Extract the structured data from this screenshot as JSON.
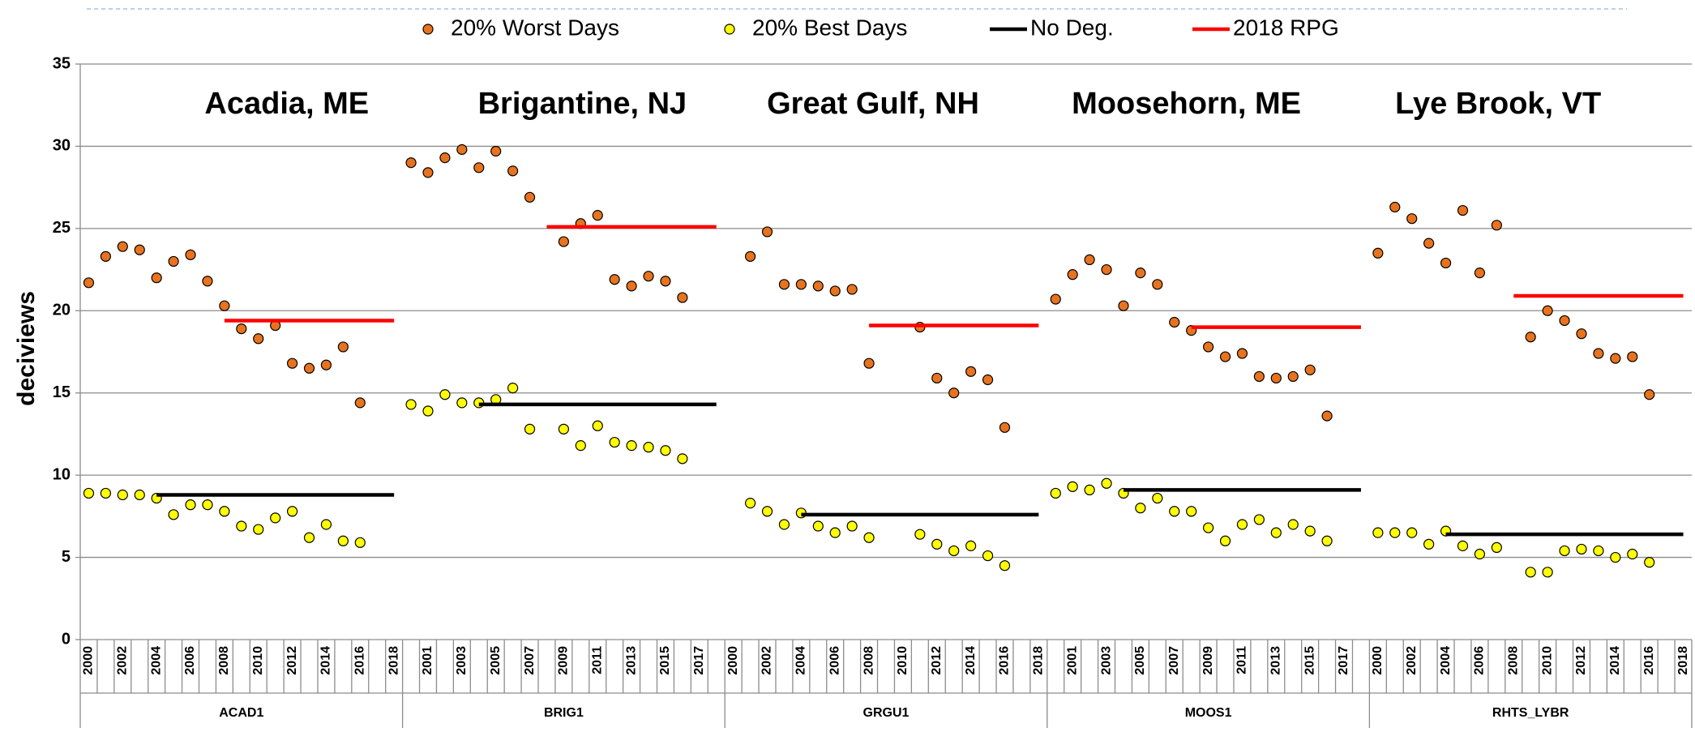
{
  "chart_data": {
    "type": "scatter",
    "y_label": "deciviews",
    "ylim": [
      0,
      35
    ],
    "yticks": [
      0,
      5,
      10,
      15,
      20,
      25,
      30,
      35
    ],
    "grid": true,
    "legend": "top",
    "groups": [
      "ACAD1",
      "BRIG1",
      "GRGU1",
      "MOOS1",
      "RHTS_LYBR"
    ],
    "annotations": [
      "Acadia, ME",
      "Brigantine, NJ",
      "Great Gulf, NH",
      "Moosehorn, ME",
      "Lye Brook, VT"
    ],
    "categories": [
      "2000",
      null,
      "2002",
      null,
      "2004",
      null,
      "2006",
      null,
      "2008",
      null,
      "2010",
      null,
      "2012",
      null,
      "2014",
      null,
      "2016",
      null,
      "2018",
      null,
      "2001",
      null,
      "2003",
      null,
      "2005",
      null,
      "2007",
      null,
      "2009",
      null,
      "2011",
      null,
      "2013",
      null,
      "2015",
      null,
      "2017",
      null,
      "2000",
      null,
      "2002",
      null,
      "2004",
      null,
      "2006",
      null,
      "2008",
      null,
      "2010",
      null,
      "2012",
      null,
      "2014",
      null,
      "2016",
      null,
      "2018",
      null,
      "2001",
      null,
      "2003",
      null,
      "2005",
      null,
      "2007",
      null,
      "2009",
      null,
      "2011",
      null,
      "2013",
      null,
      "2015",
      null,
      "2017",
      null,
      "2000",
      null,
      "2002",
      null,
      "2004",
      null,
      "2006",
      null,
      "2008",
      null,
      "2010",
      null,
      "2012",
      null,
      "2014",
      null,
      "2016",
      null,
      "2018"
    ],
    "series": [
      {
        "name": "20% Worst Days",
        "type": "scatter",
        "color": "#e8731e",
        "values": [
          21.7,
          23.3,
          23.9,
          23.7,
          22.0,
          23.0,
          23.4,
          21.8,
          20.3,
          18.9,
          18.3,
          19.1,
          16.8,
          16.5,
          16.7,
          17.8,
          14.4,
          null,
          null,
          29.0,
          28.4,
          29.3,
          29.8,
          28.7,
          29.7,
          28.5,
          26.9,
          null,
          24.2,
          25.3,
          25.8,
          21.9,
          21.5,
          22.1,
          21.8,
          20.8,
          null,
          null,
          null,
          23.3,
          24.8,
          21.6,
          21.6,
          21.5,
          21.2,
          21.3,
          16.8,
          null,
          null,
          19.0,
          15.9,
          15.0,
          16.3,
          15.8,
          12.9,
          null,
          null,
          20.7,
          22.2,
          23.1,
          22.5,
          20.3,
          22.3,
          21.6,
          19.3,
          18.8,
          17.8,
          17.2,
          17.4,
          16.0,
          15.9,
          16.0,
          16.4,
          13.6,
          null,
          null,
          23.5,
          26.3,
          25.6,
          24.1,
          22.9,
          26.1,
          22.3,
          25.2,
          null,
          18.4,
          20.0,
          19.4,
          18.6,
          17.4,
          17.1,
          17.2,
          14.9,
          null,
          null
        ]
      },
      {
        "name": "20% Best Days",
        "type": "scatter",
        "color": "#ffff00",
        "values": [
          8.9,
          8.9,
          8.8,
          8.8,
          8.6,
          7.6,
          8.2,
          8.2,
          7.8,
          6.9,
          6.7,
          7.4,
          7.8,
          6.2,
          7.0,
          6.0,
          5.9,
          null,
          null,
          14.3,
          13.9,
          14.9,
          14.4,
          14.4,
          14.6,
          15.3,
          12.8,
          null,
          12.8,
          11.8,
          13.0,
          12.0,
          11.8,
          11.7,
          11.5,
          11.0,
          null,
          null,
          null,
          8.3,
          7.8,
          7.0,
          7.7,
          6.9,
          6.5,
          6.9,
          6.2,
          null,
          null,
          6.4,
          5.8,
          5.4,
          5.7,
          5.1,
          4.5,
          null,
          null,
          8.9,
          9.3,
          9.1,
          9.5,
          8.9,
          8.0,
          8.6,
          7.8,
          7.8,
          6.8,
          6.0,
          7.0,
          7.3,
          6.5,
          7.0,
          6.6,
          6.0,
          null,
          null,
          6.5,
          6.5,
          6.5,
          5.8,
          6.6,
          5.7,
          5.2,
          5.6,
          null,
          4.1,
          4.1,
          5.4,
          5.5,
          5.4,
          5.0,
          5.2,
          4.7,
          null,
          null
        ]
      },
      {
        "name": "No Deg.",
        "type": "line",
        "color": "#000000",
        "values": [
          null,
          null,
          null,
          null,
          8.8,
          8.8,
          8.8,
          8.8,
          8.8,
          8.8,
          8.8,
          8.8,
          8.8,
          8.8,
          8.8,
          8.8,
          8.8,
          8.8,
          8.8,
          null,
          null,
          null,
          null,
          14.3,
          14.3,
          14.3,
          14.3,
          14.3,
          14.3,
          14.3,
          14.3,
          14.3,
          14.3,
          14.3,
          14.3,
          14.3,
          14.3,
          14.3,
          null,
          null,
          null,
          null,
          7.6,
          7.6,
          7.6,
          7.6,
          7.6,
          7.6,
          7.6,
          7.6,
          7.6,
          7.6,
          7.6,
          7.6,
          7.6,
          7.6,
          7.6,
          null,
          null,
          null,
          null,
          9.1,
          9.1,
          9.1,
          9.1,
          9.1,
          9.1,
          9.1,
          9.1,
          9.1,
          9.1,
          9.1,
          9.1,
          9.1,
          9.1,
          9.1,
          null,
          null,
          null,
          null,
          6.4,
          6.4,
          6.4,
          6.4,
          6.4,
          6.4,
          6.4,
          6.4,
          6.4,
          6.4,
          6.4,
          6.4,
          6.4,
          6.4,
          6.4
        ]
      },
      {
        "name": "2018 RPG",
        "type": "line",
        "color": "#ff0000",
        "values": [
          null,
          null,
          null,
          null,
          null,
          null,
          null,
          null,
          19.4,
          19.4,
          19.4,
          19.4,
          19.4,
          19.4,
          19.4,
          19.4,
          19.4,
          19.4,
          19.4,
          null,
          null,
          null,
          null,
          null,
          null,
          null,
          null,
          25.1,
          25.1,
          25.1,
          25.1,
          25.1,
          25.1,
          25.1,
          25.1,
          25.1,
          25.1,
          25.1,
          null,
          null,
          null,
          null,
          null,
          null,
          null,
          null,
          19.1,
          19.1,
          19.1,
          19.1,
          19.1,
          19.1,
          19.1,
          19.1,
          19.1,
          19.1,
          19.1,
          null,
          null,
          null,
          null,
          null,
          null,
          null,
          null,
          19.0,
          19.0,
          19.0,
          19.0,
          19.0,
          19.0,
          19.0,
          19.0,
          19.0,
          19.0,
          19.0,
          null,
          null,
          null,
          null,
          null,
          null,
          null,
          null,
          20.9,
          20.9,
          20.9,
          20.9,
          20.9,
          20.9,
          20.9,
          20.9,
          20.9,
          20.9,
          20.9
        ]
      }
    ]
  }
}
